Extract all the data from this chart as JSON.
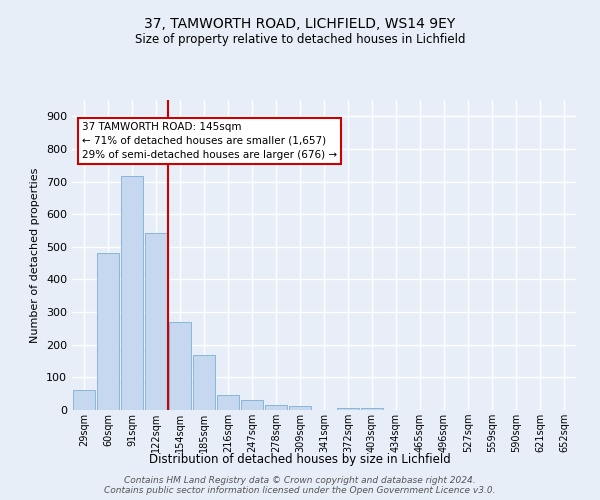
{
  "title1": "37, TAMWORTH ROAD, LICHFIELD, WS14 9EY",
  "title2": "Size of property relative to detached houses in Lichfield",
  "xlabel": "Distribution of detached houses by size in Lichfield",
  "ylabel": "Number of detached properties",
  "categories": [
    "29sqm",
    "60sqm",
    "91sqm",
    "122sqm",
    "154sqm",
    "185sqm",
    "216sqm",
    "247sqm",
    "278sqm",
    "309sqm",
    "341sqm",
    "372sqm",
    "403sqm",
    "434sqm",
    "465sqm",
    "496sqm",
    "527sqm",
    "559sqm",
    "590sqm",
    "621sqm",
    "652sqm"
  ],
  "values": [
    62,
    480,
    718,
    543,
    271,
    170,
    46,
    32,
    16,
    13,
    0,
    7,
    7,
    0,
    0,
    0,
    0,
    0,
    0,
    0,
    0
  ],
  "bar_color": "#c5d8f0",
  "bar_edge_color": "#7aafd4",
  "vline_color": "#cc0000",
  "annotation_text": "37 TAMWORTH ROAD: 145sqm\n← 71% of detached houses are smaller (1,657)\n29% of semi-detached houses are larger (676) →",
  "annotation_box_color": "#ffffff",
  "annotation_box_edge_color": "#cc0000",
  "background_color": "#e8eef8",
  "grid_color": "#ffffff",
  "footer": "Contains HM Land Registry data © Crown copyright and database right 2024.\nContains public sector information licensed under the Open Government Licence v3.0.",
  "ylim": [
    0,
    950
  ],
  "yticks": [
    0,
    100,
    200,
    300,
    400,
    500,
    600,
    700,
    800,
    900
  ]
}
